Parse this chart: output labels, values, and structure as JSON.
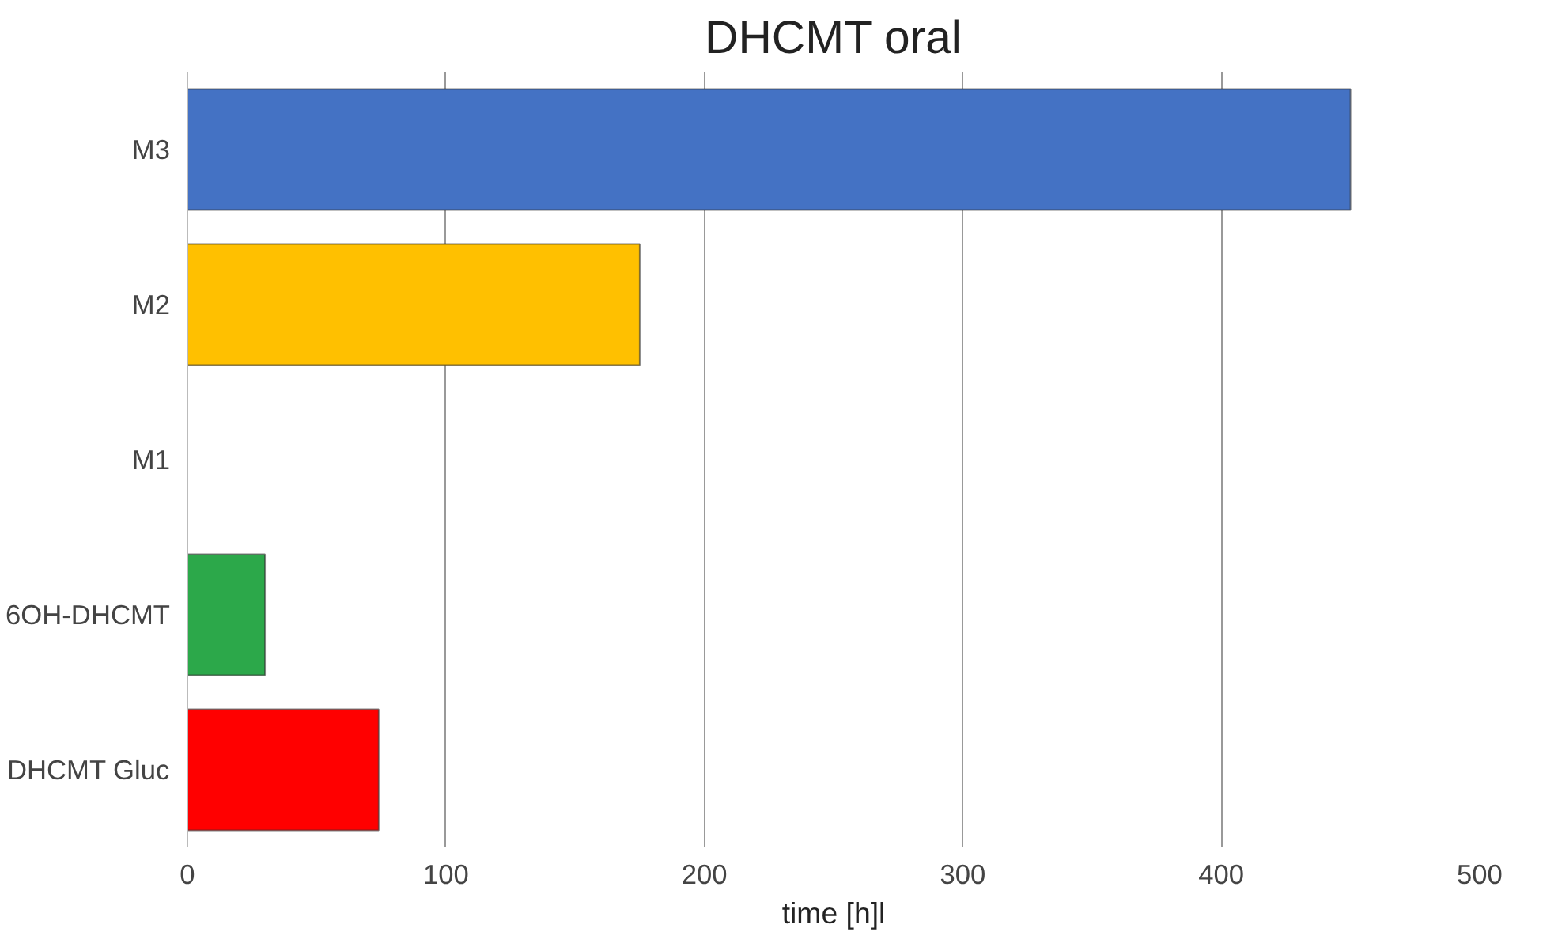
{
  "chart_data": {
    "type": "bar",
    "orientation": "horizontal",
    "title": "DHCMT oral",
    "xlabel": "time [h]l",
    "categories": [
      "M3",
      "M2",
      "M1",
      "6OH-DHCMT",
      "DHCMT Gluc"
    ],
    "values": [
      450,
      175,
      null,
      30,
      74
    ],
    "colors": [
      "#4472c4",
      "#ffc000",
      "#ffffff",
      "#2ca84a",
      "#ff0000"
    ],
    "xlim": [
      0,
      500
    ],
    "xticks": [
      0,
      100,
      200,
      300,
      400,
      500
    ],
    "grid": "x"
  }
}
